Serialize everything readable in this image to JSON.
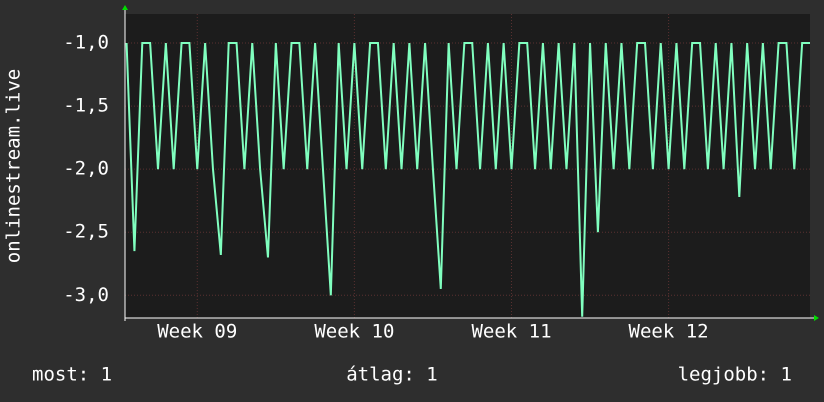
{
  "chart_data": {
    "type": "line",
    "ylabel": "onlinestream.live",
    "xlim": [
      8.54,
      12.9
    ],
    "xticks": [
      {
        "value": 9,
        "label": "Week 09"
      },
      {
        "value": 10,
        "label": "Week 10"
      },
      {
        "value": 11,
        "label": "Week 11"
      },
      {
        "value": 12,
        "label": "Week 12"
      }
    ],
    "ylim": [
      -3.18,
      -0.77
    ],
    "yticks": [
      {
        "value": -1,
        "label": "-1,0"
      },
      {
        "value": -1.5,
        "label": "-1,5"
      },
      {
        "value": -2,
        "label": "-2,0"
      },
      {
        "value": -2.5,
        "label": "-2,5"
      },
      {
        "value": -3,
        "label": "-3,0"
      }
    ],
    "grid": true,
    "series": [
      {
        "color": "#80ffbf",
        "x": [
          8.55,
          8.6,
          8.65,
          8.7,
          8.75,
          8.8,
          8.85,
          8.9,
          8.95,
          9.0,
          9.05,
          9.1,
          9.15,
          9.2,
          9.25,
          9.3,
          9.35,
          9.4,
          9.45,
          9.5,
          9.55,
          9.6,
          9.65,
          9.7,
          9.75,
          9.8,
          9.85,
          9.9,
          9.95,
          10.0,
          10.05,
          10.1,
          10.15,
          10.2,
          10.25,
          10.3,
          10.35,
          10.4,
          10.45,
          10.5,
          10.55,
          10.6,
          10.65,
          10.7,
          10.75,
          10.8,
          10.85,
          10.9,
          10.95,
          11.0,
          11.05,
          11.1,
          11.15,
          11.2,
          11.25,
          11.3,
          11.35,
          11.4,
          11.45,
          11.5,
          11.55,
          11.6,
          11.65,
          11.7,
          11.75,
          11.8,
          11.85,
          11.9,
          11.95,
          12.0,
          12.05,
          12.1,
          12.15,
          12.2,
          12.25,
          12.3,
          12.35,
          12.4,
          12.45,
          12.5,
          12.55,
          12.6,
          12.65,
          12.7,
          12.75,
          12.8,
          12.85,
          12.9
        ],
        "values": [
          -1,
          -2.65,
          -1,
          -1,
          -2,
          -1,
          -2,
          -1,
          -1,
          -2,
          -1,
          -2,
          -2.68,
          -1,
          -1,
          -2,
          -1,
          -2,
          -2.7,
          -1,
          -2,
          -1,
          -1,
          -2,
          -1,
          -2,
          -3.0,
          -1,
          -2,
          -1,
          -2,
          -1,
          -1,
          -2,
          -1,
          -2,
          -1,
          -2,
          -1,
          -2,
          -2.95,
          -1,
          -2,
          -1,
          -1,
          -2,
          -1,
          -2,
          -1,
          -2,
          -1,
          -1,
          -2,
          -1,
          -2,
          -1,
          -2,
          -1,
          -3.17,
          -1,
          -2.5,
          -1,
          -2,
          -1,
          -2,
          -1,
          -1,
          -2,
          -1,
          -2,
          -1,
          -2,
          -1,
          -1,
          -2,
          -1,
          -2,
          -1,
          -2.22,
          -1,
          -2,
          -1,
          -2,
          -1,
          -1,
          -2,
          -1,
          -1
        ]
      }
    ],
    "stats": [
      "most: 1",
      "átlag: 1",
      "legjobb: 1"
    ]
  }
}
